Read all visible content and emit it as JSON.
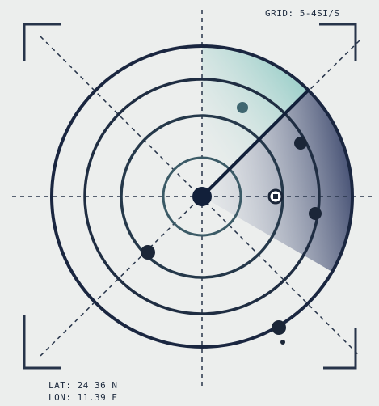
{
  "header": {
    "grid_label": "GRID: 5-4SI/S"
  },
  "footer": {
    "lat": "LAT: 24 36 N",
    "lon": "LON: 11.39 E"
  }
}
